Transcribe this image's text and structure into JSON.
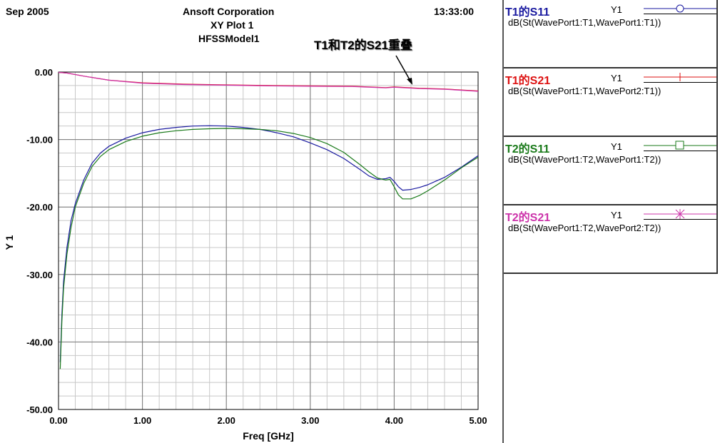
{
  "header": {
    "date": "Sep 2005",
    "time": "13:33:00",
    "company": "Ansoft Corporation",
    "plot_title": "XY Plot 1",
    "model": "HFSSModel1"
  },
  "annotation": "T1和T2的S21重叠",
  "legend": [
    {
      "name": "T1的S11",
      "axis": "Y1",
      "expr": "dB(St(WavePort1:T1,WavePort1:T1))",
      "color": "#1a1aa0",
      "marker": "circle"
    },
    {
      "name": "T1的S21",
      "axis": "Y1",
      "expr": "dB(St(WavePort1:T1,WavePort2:T1))",
      "color": "#dd1111",
      "marker": "vtick"
    },
    {
      "name": "T2的S11",
      "axis": "Y1",
      "expr": "dB(St(WavePort1:T2,WavePort1:T2))",
      "color": "#1a7a1a",
      "marker": "square"
    },
    {
      "name": "T2的S21",
      "axis": "Y1",
      "expr": "dB(St(WavePort1:T2,WavePort2:T2))",
      "color": "#cc33aa",
      "marker": "star"
    }
  ],
  "chart_data": {
    "type": "line",
    "title": "XY Plot 1",
    "xlabel": "Freq [GHz]",
    "ylabel": "Y 1",
    "xlim": [
      0,
      5
    ],
    "ylim": [
      -50,
      0
    ],
    "xticks": [
      "0.00",
      "1.00",
      "2.00",
      "3.00",
      "4.00",
      "5.00"
    ],
    "yticks": [
      "0.00",
      "-10.00",
      "-20.00",
      "-30.00",
      "-40.00",
      "-50.00"
    ],
    "grid": true,
    "legend_position": "right-panel",
    "series": [
      {
        "name": "T1的S11",
        "color": "#1a1aa0",
        "points": [
          [
            0.02,
            -43
          ],
          [
            0.04,
            -36
          ],
          [
            0.06,
            -31
          ],
          [
            0.1,
            -26
          ],
          [
            0.15,
            -22
          ],
          [
            0.2,
            -19.5
          ],
          [
            0.3,
            -16
          ],
          [
            0.4,
            -13.5
          ],
          [
            0.5,
            -12
          ],
          [
            0.6,
            -11
          ],
          [
            0.8,
            -9.8
          ],
          [
            1.0,
            -9
          ],
          [
            1.2,
            -8.5
          ],
          [
            1.4,
            -8.2
          ],
          [
            1.6,
            -8.0
          ],
          [
            1.8,
            -7.95
          ],
          [
            2.0,
            -8.0
          ],
          [
            2.2,
            -8.2
          ],
          [
            2.4,
            -8.5
          ],
          [
            2.6,
            -9
          ],
          [
            2.8,
            -9.6
          ],
          [
            3.0,
            -10.5
          ],
          [
            3.2,
            -11.5
          ],
          [
            3.4,
            -12.8
          ],
          [
            3.6,
            -14.5
          ],
          [
            3.7,
            -15.4
          ],
          [
            3.8,
            -15.9
          ],
          [
            3.9,
            -15.8
          ],
          [
            3.95,
            -15.6
          ],
          [
            4.0,
            -16.2
          ],
          [
            4.05,
            -17.0
          ],
          [
            4.1,
            -17.5
          ],
          [
            4.2,
            -17.4
          ],
          [
            4.3,
            -17.1
          ],
          [
            4.4,
            -16.7
          ],
          [
            4.6,
            -15.6
          ],
          [
            4.8,
            -14.1
          ],
          [
            5.0,
            -12.4
          ]
        ]
      },
      {
        "name": "T1的S21",
        "color": "#dd1111",
        "points": [
          [
            0.0,
            -0.05
          ],
          [
            0.1,
            -0.15
          ],
          [
            0.3,
            -0.6
          ],
          [
            0.6,
            -1.2
          ],
          [
            1.0,
            -1.6
          ],
          [
            1.5,
            -1.8
          ],
          [
            2.0,
            -1.9
          ],
          [
            2.5,
            -2.0
          ],
          [
            3.0,
            -2.05
          ],
          [
            3.5,
            -2.1
          ],
          [
            3.9,
            -2.3
          ],
          [
            4.0,
            -2.2
          ],
          [
            4.3,
            -2.4
          ],
          [
            4.6,
            -2.5
          ],
          [
            5.0,
            -2.8
          ]
        ]
      },
      {
        "name": "T2的S11",
        "color": "#1a7a1a",
        "points": [
          [
            0.02,
            -44
          ],
          [
            0.04,
            -37
          ],
          [
            0.06,
            -32
          ],
          [
            0.1,
            -27
          ],
          [
            0.15,
            -23
          ],
          [
            0.2,
            -20
          ],
          [
            0.3,
            -16.5
          ],
          [
            0.4,
            -14
          ],
          [
            0.5,
            -12.5
          ],
          [
            0.6,
            -11.5
          ],
          [
            0.8,
            -10.3
          ],
          [
            1.0,
            -9.5
          ],
          [
            1.2,
            -9.0
          ],
          [
            1.4,
            -8.7
          ],
          [
            1.6,
            -8.5
          ],
          [
            1.8,
            -8.4
          ],
          [
            2.0,
            -8.35
          ],
          [
            2.2,
            -8.4
          ],
          [
            2.4,
            -8.5
          ],
          [
            2.6,
            -8.7
          ],
          [
            2.8,
            -9.1
          ],
          [
            3.0,
            -9.7
          ],
          [
            3.2,
            -10.6
          ],
          [
            3.4,
            -11.9
          ],
          [
            3.6,
            -13.8
          ],
          [
            3.7,
            -14.8
          ],
          [
            3.8,
            -15.7
          ],
          [
            3.9,
            -16.0
          ],
          [
            3.95,
            -15.9
          ],
          [
            4.0,
            -17.0
          ],
          [
            4.05,
            -18.2
          ],
          [
            4.1,
            -18.8
          ],
          [
            4.2,
            -18.8
          ],
          [
            4.3,
            -18.3
          ],
          [
            4.4,
            -17.6
          ],
          [
            4.6,
            -16.0
          ],
          [
            4.8,
            -14.2
          ],
          [
            5.0,
            -12.6
          ]
        ]
      },
      {
        "name": "T2的S21",
        "color": "#cc33aa",
        "points": [
          [
            0.0,
            -0.05
          ],
          [
            0.1,
            -0.15
          ],
          [
            0.3,
            -0.6
          ],
          [
            0.6,
            -1.2
          ],
          [
            1.0,
            -1.65
          ],
          [
            1.5,
            -1.85
          ],
          [
            2.0,
            -1.95
          ],
          [
            2.5,
            -2.05
          ],
          [
            3.0,
            -2.1
          ],
          [
            3.5,
            -2.15
          ],
          [
            3.9,
            -2.35
          ],
          [
            4.0,
            -2.25
          ],
          [
            4.3,
            -2.45
          ],
          [
            4.6,
            -2.55
          ],
          [
            5.0,
            -2.85
          ]
        ]
      }
    ]
  }
}
